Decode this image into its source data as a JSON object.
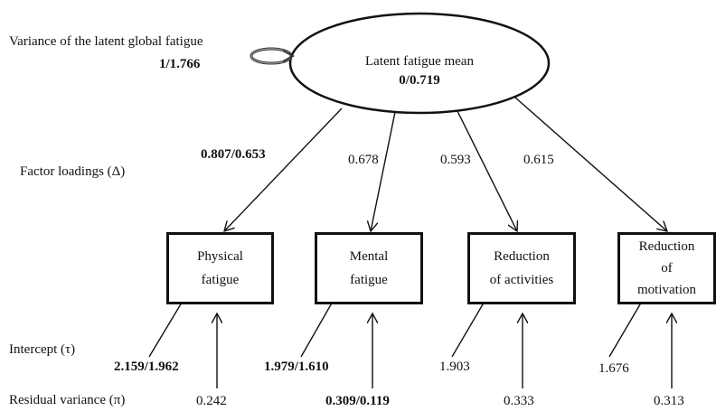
{
  "labels": {
    "variance_title": "Variance of the latent global fatigue",
    "variance_value": "1/1.766",
    "factor_loadings": "Factor loadings (Δ)",
    "intercept": "Intercept (τ)",
    "residual_variance": "Residual variance (π)"
  },
  "latent": {
    "title": "Latent fatigue mean",
    "value": "0/0.719"
  },
  "loadings": [
    "0.807/0.653",
    "0.678",
    "0.593",
    "0.615"
  ],
  "indicators": [
    {
      "label": "Physical\nfatigue",
      "intercept": "2.159/1.962",
      "residual": "0.242"
    },
    {
      "label": "Mental\nfatigue",
      "intercept": "1.979/1.610",
      "residual": "0.309/0.119"
    },
    {
      "label": "Reduction\nof activities",
      "intercept": "1.903",
      "residual": "0.333"
    },
    {
      "label": "Reduction\nof\nmotivation",
      "intercept": "1.676",
      "residual": "0.313"
    }
  ]
}
